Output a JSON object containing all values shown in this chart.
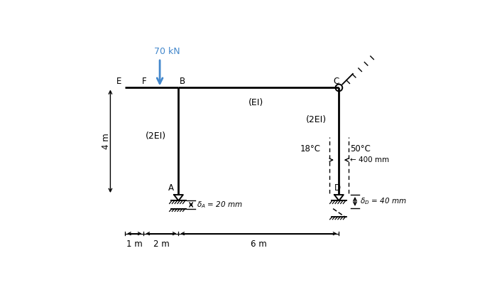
{
  "bg_color": "#ffffff",
  "frame_color": "#000000",
  "arrow_color": "#4488cc",
  "xlim": [
    -0.8,
    12.5
  ],
  "ylim": [
    -2.2,
    6.0
  ],
  "figsize": [
    7.0,
    4.01
  ],
  "dpi": 100
}
